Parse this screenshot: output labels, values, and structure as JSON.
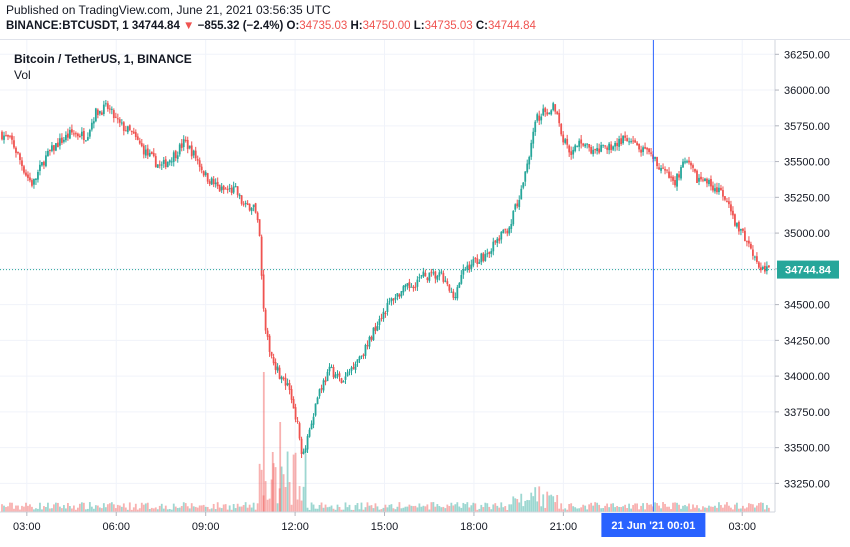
{
  "header": {
    "published": "Published on TradingView.com, June 21, 2021 03:56:35 UTC",
    "symbol": "BINANCE:BTCUSDT, 1",
    "last_price": "34744.84",
    "change": "−855.32 (−2.4%)",
    "open_label": "O:",
    "open_value": "34735.03",
    "high_label": "H:",
    "high_value": "34750.00",
    "low_label": "L:",
    "low_value": "34735.03",
    "close_label": "C:",
    "close_value": "34744.84"
  },
  "legend": {
    "title": "Bitcoin / TetherUS, 1, BINANCE",
    "vol": "Vol"
  },
  "colors": {
    "up": "#26a69a",
    "down": "#ef5350",
    "crosshair": "#2962ff",
    "price_label": "#26a69a",
    "grid": "#f0f3fa"
  },
  "chart_data": {
    "type": "candlestick",
    "symbol": "BINANCE:BTCUSDT",
    "timeframe": "1",
    "ylim": [
      33050,
      36350
    ],
    "y_ticks": [
      36250,
      36000,
      35750,
      35500,
      35250,
      35000,
      34750,
      34500,
      34250,
      34000,
      33750,
      33500,
      33250
    ],
    "y_tick_labels": [
      "36250.00",
      "36000.00",
      "35750.00",
      "35500.00",
      "35250.00",
      "35000.00",
      "34750.00",
      "34500.00",
      "34250.00",
      "34000.00",
      "33750.00",
      "33500.00",
      "33250.00"
    ],
    "x_tick_labels": [
      "03:00",
      "06:00",
      "09:00",
      "12:00",
      "15:00",
      "18:00",
      "21:00",
      "03:00"
    ],
    "x_tick_hours": [
      3,
      6,
      9,
      12,
      15,
      18,
      21,
      27
    ],
    "xlim_hours": [
      2.1,
      28.1
    ],
    "last_price": 34744.84,
    "last_price_label": "34744.84",
    "crosshair_hour": 24.02,
    "crosshair_label": "21 Jun '21   00:01",
    "close_path": [
      [
        2.1,
        35700
      ],
      [
        2.5,
        35640
      ],
      [
        3.0,
        35400
      ],
      [
        3.2,
        35340
      ],
      [
        3.6,
        35520
      ],
      [
        4.0,
        35620
      ],
      [
        4.5,
        35700
      ],
      [
        5.0,
        35680
      ],
      [
        5.3,
        35840
      ],
      [
        5.7,
        35880
      ],
      [
        6.1,
        35760
      ],
      [
        6.5,
        35700
      ],
      [
        7.0,
        35560
      ],
      [
        7.5,
        35460
      ],
      [
        8.0,
        35560
      ],
      [
        8.3,
        35640
      ],
      [
        8.7,
        35520
      ],
      [
        9.0,
        35400
      ],
      [
        9.5,
        35300
      ],
      [
        10.0,
        35300
      ],
      [
        10.3,
        35180
      ],
      [
        10.6,
        35200
      ],
      [
        10.8,
        35000
      ],
      [
        11.0,
        34300
      ],
      [
        11.2,
        34150
      ],
      [
        11.5,
        34000
      ],
      [
        11.8,
        33900
      ],
      [
        12.0,
        33750
      ],
      [
        12.25,
        33450
      ],
      [
        12.45,
        33600
      ],
      [
        12.8,
        33900
      ],
      [
        13.2,
        34050
      ],
      [
        13.6,
        33950
      ],
      [
        14.0,
        34100
      ],
      [
        14.4,
        34200
      ],
      [
        14.8,
        34400
      ],
      [
        15.3,
        34550
      ],
      [
        15.8,
        34620
      ],
      [
        16.3,
        34700
      ],
      [
        16.9,
        34700
      ],
      [
        17.3,
        34550
      ],
      [
        17.7,
        34750
      ],
      [
        18.0,
        34800
      ],
      [
        18.4,
        34850
      ],
      [
        18.8,
        34950
      ],
      [
        19.2,
        35050
      ],
      [
        19.6,
        35300
      ],
      [
        19.9,
        35600
      ],
      [
        20.1,
        35800
      ],
      [
        20.4,
        35850
      ],
      [
        20.7,
        35900
      ],
      [
        21.0,
        35650
      ],
      [
        21.3,
        35560
      ],
      [
        21.6,
        35650
      ],
      [
        22.0,
        35560
      ],
      [
        22.5,
        35600
      ],
      [
        23.0,
        35650
      ],
      [
        23.5,
        35600
      ],
      [
        24.0,
        35520
      ],
      [
        24.3,
        35450
      ],
      [
        24.7,
        35350
      ],
      [
        25.1,
        35500
      ],
      [
        25.5,
        35380
      ],
      [
        25.9,
        35350
      ],
      [
        26.2,
        35300
      ],
      [
        26.5,
        35200
      ],
      [
        26.8,
        35050
      ],
      [
        27.0,
        35000
      ],
      [
        27.3,
        34900
      ],
      [
        27.6,
        34750
      ],
      [
        27.9,
        34744.84
      ]
    ]
  }
}
